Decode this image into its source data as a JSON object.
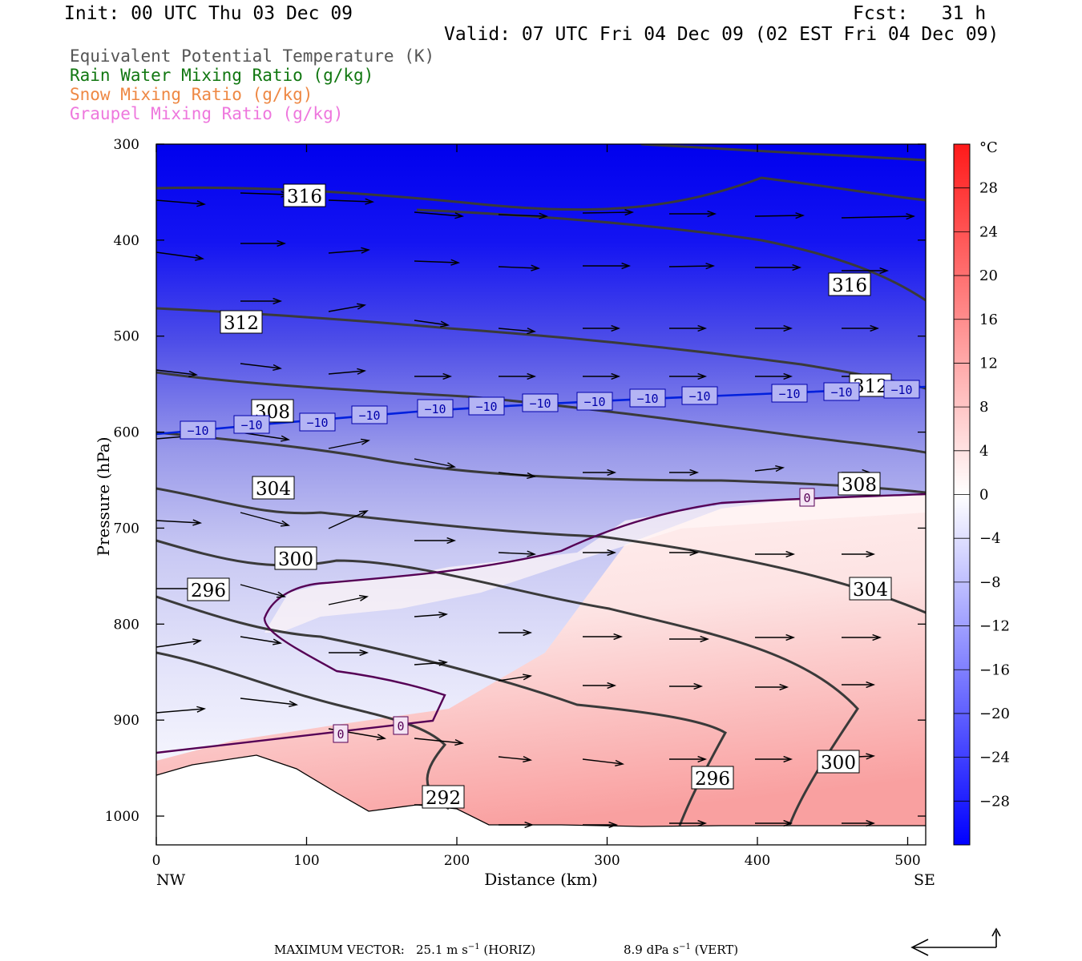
{
  "header": {
    "init": "Init: 00 UTC Thu 03 Dec 09",
    "fcst": "Fcst:   31 h",
    "valid": "Valid: 07 UTC Fri 04 Dec 09 (02 EST Fri 04 Dec 09)"
  },
  "legend": [
    {
      "label": "Equivalent Potential Temperature (K)",
      "color": "#555555"
    },
    {
      "label": "Rain Water Mixing Ratio (g/kg)",
      "color": "#117711"
    },
    {
      "label": "Snow Mixing Ratio (g/kg)",
      "color": "#ee8844"
    },
    {
      "label": "Graupel Mixing Ratio (g/kg)",
      "color": "#ee77dd"
    }
  ],
  "chart_data": {
    "type": "cross-section",
    "xlabel": "Distance (km)",
    "ylabel": "Pressure (hPa)",
    "x_ticks": [
      0,
      100,
      200,
      300,
      400,
      500
    ],
    "y_ticks": [
      300,
      400,
      500,
      600,
      700,
      800,
      900,
      1000
    ],
    "xlim": [
      0,
      512
    ],
    "ylim": [
      1030,
      300
    ],
    "y_axis": "pressure, decreasing upward",
    "x_end_labels": {
      "left": "NW",
      "right": "SE"
    },
    "colorbar": {
      "unit": "°C",
      "tick_labels": [
        "28",
        "24",
        "20",
        "16",
        "12",
        "8",
        "4",
        "0",
        "−4",
        "−8",
        "−12",
        "−16",
        "−20",
        "−24",
        "−28"
      ],
      "range": [
        -32,
        32
      ],
      "colors": {
        "cold": "#0000ff",
        "neutral": "#ffffff",
        "warm": "#ff2020"
      }
    },
    "theta_e_labels": [
      "316",
      "316",
      "312",
      "312",
      "308",
      "308",
      "304",
      "304",
      "300",
      "300",
      "296",
      "296",
      "292"
    ],
    "isotherm_labels": [
      "−10",
      "0"
    ],
    "wind_arrows": "horizontal wind vectors, generally west to east"
  },
  "footer": {
    "max_vector_label": "MAXIMUM VECTOR:",
    "horiz_value": "25.1 m s",
    "horiz_exp": "−1",
    "horiz_tag": "(HORIZ)",
    "vert_value": "8.9 dPa s",
    "vert_exp": "−1",
    "vert_tag": "(VERT)"
  }
}
